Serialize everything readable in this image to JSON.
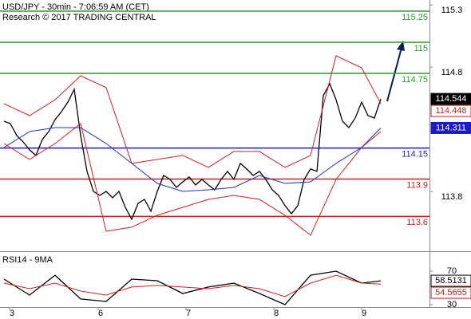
{
  "chart_data": [
    {
      "type": "line",
      "title": "USD/JPY - 30min - 7:06:59 AM (CET)",
      "subtitle": "Research © 2017 TRADING CENTRAL",
      "xlim": [
        -0.625,
        66.625
      ],
      "ylim": [
        113.32,
        115.34
      ],
      "yticks": [
        115.3,
        114.8,
        113.8
      ],
      "x": [
        0,
        1,
        2,
        3,
        4,
        5,
        6,
        7,
        8,
        9,
        10,
        11,
        12,
        13,
        14,
        15,
        16,
        17,
        18,
        19,
        20,
        21,
        22,
        23,
        24,
        25,
        26,
        27,
        28,
        29,
        30,
        31,
        32,
        33,
        34,
        35,
        36,
        37,
        38,
        39,
        40,
        41,
        42,
        43,
        44,
        45,
        46,
        47,
        48,
        49,
        50,
        51,
        52,
        53,
        54,
        55,
        56,
        57,
        58,
        59
      ],
      "series": [
        {
          "color": "#000000",
          "values": [
            114.365,
            114.346,
            114.25,
            114.199,
            114.135,
            114.09,
            114.218,
            114.282,
            114.378,
            114.442,
            114.519,
            114.622,
            114.25,
            113.962,
            113.801,
            113.769,
            113.801,
            113.75,
            113.801,
            113.673,
            113.577,
            113.705,
            113.737,
            113.641,
            113.801,
            113.929,
            113.897,
            113.833,
            113.878,
            113.917,
            113.853,
            113.897,
            113.853,
            113.814,
            113.897,
            113.962,
            113.897,
            114.026,
            113.981,
            113.929,
            113.962,
            113.897,
            113.814,
            113.769,
            113.686,
            113.622,
            113.686,
            113.897,
            113.981,
            113.962,
            114.571,
            114.667,
            114.538,
            114.365,
            114.314,
            114.391,
            114.519,
            114.41,
            114.391,
            114.544
          ]
        },
        {
          "color": "#d42020",
          "x": [
            0,
            4,
            8,
            12,
            16,
            20,
            24,
            28,
            32,
            36,
            40,
            44,
            48,
            52,
            56,
            59
          ],
          "values": [
            114.506,
            114.41,
            114.538,
            114.731,
            114.635,
            114.026,
            114.058,
            114.09,
            113.994,
            114.122,
            114.122,
            113.994,
            114.09,
            114.891,
            114.795,
            114.506
          ]
        },
        {
          "color": "#d42020",
          "x": [
            0,
            4,
            8,
            12,
            16,
            20,
            24,
            28,
            32,
            36,
            40,
            44,
            48,
            52,
            56,
            59
          ],
          "values": [
            114.186,
            114.058,
            114.186,
            114.346,
            113.481,
            113.513,
            113.609,
            113.673,
            113.737,
            113.769,
            113.737,
            113.609,
            113.449,
            113.897,
            114.154,
            114.282
          ]
        },
        {
          "color": "#2233bb",
          "x": [
            0,
            4,
            8,
            12,
            16,
            20,
            24,
            28,
            32,
            36,
            40,
            44,
            48,
            52,
            56,
            59
          ],
          "values": [
            114.154,
            114.282,
            114.314,
            114.314,
            114.186,
            114.026,
            113.865,
            113.801,
            113.814,
            113.833,
            113.929,
            113.865,
            113.878,
            114.026,
            114.154,
            114.311
          ]
        }
      ],
      "levels": [
        {
          "value": 115.25,
          "color": "#2e9a2e"
        },
        {
          "value": 115,
          "color": "#2e9a2e"
        },
        {
          "value": 114.75,
          "color": "#2e9a2e"
        },
        {
          "value": 114.15,
          "color": "#1c1cc0"
        },
        {
          "value": 113.9,
          "color": "#cc1f1f"
        },
        {
          "value": 113.6,
          "color": "#cc1f1f"
        }
      ],
      "price_tags": [
        {
          "value": 114.544,
          "color": "#000000",
          "filled": true
        },
        {
          "value": 114.448,
          "color": "#cc1f1f",
          "filled": false
        },
        {
          "value": 114.311,
          "color": "#1c1cc0",
          "filled": true
        }
      ]
    },
    {
      "type": "line",
      "title": "RSI14 - 9MA",
      "xlim": [
        -0.625,
        66.625
      ],
      "ylim": [
        27.1,
        91
      ],
      "yticks": [
        70,
        30
      ],
      "xticks": [
        {
          "value": 0.875,
          "label": "3"
        },
        {
          "value": 14.75,
          "label": "6"
        },
        {
          "value": 28.5,
          "label": "7"
        },
        {
          "value": 42.25,
          "label": "8"
        },
        {
          "value": 56,
          "label": "9"
        }
      ],
      "x": [
        0,
        4,
        8,
        12,
        16,
        20,
        24,
        28,
        32,
        36,
        40,
        44,
        48,
        52,
        56,
        59
      ],
      "series": [
        {
          "color": "#000000",
          "values": [
            60.5,
            41.4,
            65.2,
            36.7,
            33.8,
            60.5,
            58.6,
            43.3,
            51,
            55.7,
            43.3,
            30,
            65.2,
            70,
            55.7,
            58.5131
          ]
        },
        {
          "color": "#d42020",
          "values": [
            55.7,
            49,
            55.7,
            46.2,
            41.4,
            51,
            52.9,
            51,
            49,
            52.9,
            49,
            39.5,
            55.7,
            65.2,
            55.7,
            54.5655
          ]
        }
      ],
      "price_tags": [
        {
          "value": 58.5131,
          "color": "#000000",
          "filled": false
        },
        {
          "value": 54.5655,
          "color": "#cc1f1f",
          "filled": false
        }
      ]
    }
  ]
}
